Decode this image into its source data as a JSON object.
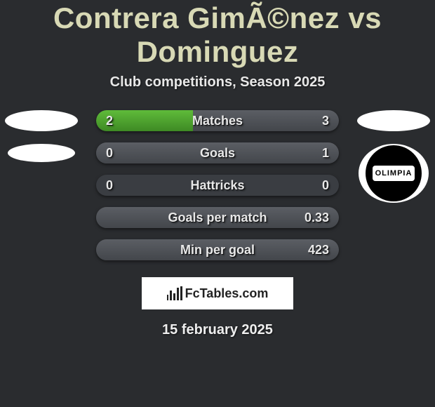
{
  "header": {
    "title": "Contrera GimÃ©nez vs Dominguez",
    "subtitle": "Club competitions, Season 2025"
  },
  "bars": [
    {
      "label": "Matches",
      "left": "2",
      "right": "3",
      "left_pct": 40,
      "right_pct": 60
    },
    {
      "label": "Goals",
      "left": "0",
      "right": "1",
      "left_pct": 0,
      "right_pct": 100
    },
    {
      "label": "Hattricks",
      "left": "0",
      "right": "0",
      "left_pct": 0,
      "right_pct": 0
    },
    {
      "label": "Goals per match",
      "left": "",
      "right": "0.33",
      "left_pct": 0,
      "right_pct": 100
    },
    {
      "label": "Min per goal",
      "left": "",
      "right": "423",
      "left_pct": 0,
      "right_pct": 100
    }
  ],
  "colors": {
    "left_fill": "#5fbb3a",
    "right_fill": "#5b5e64",
    "bg": "#2a2c2f"
  },
  "badges": {
    "right_club_label": "OLIMPIA"
  },
  "banner": {
    "text": "FcTables.com"
  },
  "footer": {
    "date": "15 february 2025"
  }
}
